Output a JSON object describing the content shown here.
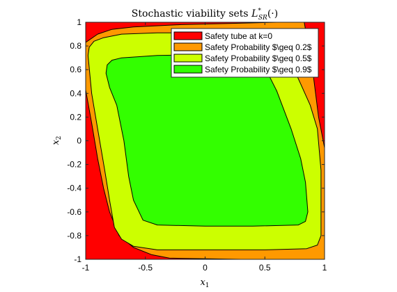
{
  "chart_data": {
    "type": "area",
    "title": {
      "main": "Stochastic viability sets ",
      "L": "L",
      "sub": "SR",
      "sup": "*",
      "arg": "(·)"
    },
    "xlabel": {
      "base": "x",
      "sub": "1"
    },
    "ylabel": {
      "base": "x",
      "sub": "2"
    },
    "xlim": [
      -1,
      1
    ],
    "ylim": [
      -1,
      1
    ],
    "x_ticks": [
      {
        "v": -1,
        "label": "-1"
      },
      {
        "v": -0.5,
        "label": "-0.5"
      },
      {
        "v": 0,
        "label": "0"
      },
      {
        "v": 0.5,
        "label": "0.5"
      },
      {
        "v": 1,
        "label": "1"
      }
    ],
    "y_ticks": [
      {
        "v": -1,
        "label": "-1"
      },
      {
        "v": -0.8,
        "label": "-0.8"
      },
      {
        "v": -0.6,
        "label": "-0.6"
      },
      {
        "v": -0.4,
        "label": "-0.4"
      },
      {
        "v": -0.2,
        "label": "-0.2"
      },
      {
        "v": 0,
        "label": "0"
      },
      {
        "v": 0.2,
        "label": "0.2"
      },
      {
        "v": 0.4,
        "label": "0.4"
      },
      {
        "v": 0.6,
        "label": "0.6"
      },
      {
        "v": 0.8,
        "label": "0.8"
      },
      {
        "v": 1,
        "label": "1"
      }
    ],
    "grid": false,
    "legend_position": "top-right",
    "series": [
      {
        "name": "Safety tube at k=0",
        "color": "#ff0000",
        "polygon": [
          [
            -1,
            -1
          ],
          [
            1,
            -1
          ],
          [
            1,
            1
          ],
          [
            -1,
            1
          ]
        ]
      },
      {
        "name": "Safety Probability $\\geq 0.2$",
        "color": "#ff9900",
        "polygon": [
          [
            -1,
            0.43
          ],
          [
            -1,
            0.83
          ],
          [
            -0.9,
            0.9
          ],
          [
            -0.78,
            0.94
          ],
          [
            -0.6,
            0.96
          ],
          [
            -0.2,
            0.98
          ],
          [
            0.2,
            0.99
          ],
          [
            0.6,
            1.0
          ],
          [
            0.83,
            1.0
          ],
          [
            0.9,
            0.6
          ],
          [
            0.95,
            0.2
          ],
          [
            1,
            -0.06
          ],
          [
            1,
            -1
          ],
          [
            0.3,
            -1
          ],
          [
            -0.3,
            -0.99
          ],
          [
            -0.45,
            -0.96
          ],
          [
            -0.6,
            -0.9
          ],
          [
            -0.72,
            -0.8
          ],
          [
            -0.8,
            -0.6
          ],
          [
            -0.85,
            -0.4
          ],
          [
            -0.9,
            -0.15
          ],
          [
            -0.95,
            0.15
          ]
        ]
      },
      {
        "name": "Safety Probability $\\geq 0.5$",
        "color": "#ccff00",
        "polygon": [
          [
            -0.98,
            0.72
          ],
          [
            -0.97,
            0.79
          ],
          [
            -0.93,
            0.84
          ],
          [
            -0.85,
            0.87
          ],
          [
            -0.7,
            0.9
          ],
          [
            -0.4,
            0.91
          ],
          [
            0,
            0.91
          ],
          [
            0.3,
            0.9
          ],
          [
            0.5,
            0.88
          ],
          [
            0.6,
            0.84
          ],
          [
            0.7,
            0.7
          ],
          [
            0.8,
            0.48
          ],
          [
            0.88,
            0.3
          ],
          [
            0.94,
            0.1
          ],
          [
            0.97,
            -0.25
          ],
          [
            0.97,
            -0.8
          ],
          [
            0.94,
            -0.88
          ],
          [
            0.85,
            -0.91
          ],
          [
            0.5,
            -0.92
          ],
          [
            0,
            -0.92
          ],
          [
            -0.4,
            -0.92
          ],
          [
            -0.6,
            -0.89
          ],
          [
            -0.7,
            -0.83
          ],
          [
            -0.76,
            -0.73
          ],
          [
            -0.8,
            -0.5
          ],
          [
            -0.84,
            -0.25
          ],
          [
            -0.9,
            0.1
          ],
          [
            -0.95,
            0.4
          ]
        ]
      },
      {
        "name": "Safety Probability $\\geq 0.9$",
        "color": "#33ff00",
        "polygon": [
          [
            -0.83,
            0.57
          ],
          [
            -0.82,
            0.64
          ],
          [
            -0.78,
            0.68
          ],
          [
            -0.7,
            0.7
          ],
          [
            -0.4,
            0.72
          ],
          [
            0.2,
            0.73
          ],
          [
            0.4,
            0.7
          ],
          [
            0.5,
            0.62
          ],
          [
            0.6,
            0.42
          ],
          [
            0.72,
            0.1
          ],
          [
            0.8,
            -0.15
          ],
          [
            0.84,
            -0.35
          ],
          [
            0.86,
            -0.6
          ],
          [
            0.84,
            -0.68
          ],
          [
            0.78,
            -0.71
          ],
          [
            0.4,
            -0.72
          ],
          [
            0,
            -0.72
          ],
          [
            -0.4,
            -0.71
          ],
          [
            -0.52,
            -0.67
          ],
          [
            -0.6,
            -0.5
          ],
          [
            -0.64,
            -0.3
          ],
          [
            -0.68,
            0
          ],
          [
            -0.74,
            0.3
          ],
          [
            -0.8,
            0.45
          ]
        ]
      }
    ]
  }
}
